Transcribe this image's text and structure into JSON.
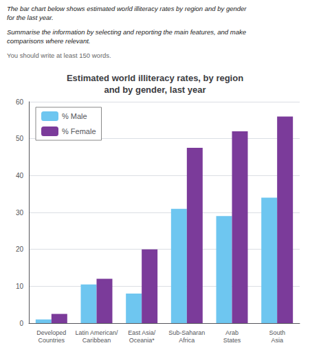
{
  "chart_data": {
    "type": "bar",
    "title": "Estimated world illiteracy rates, by region\nand by gender, last year",
    "annotations": [
      "The bar chart below shows estimated world illiteracy rates by region and by gender\nfor the last year.",
      "Summarise the information by selecting and reporting the main features, and make\ncomparisons where relevant.",
      "You should write at least 150 words."
    ],
    "categories": [
      "Developed\nCountries",
      "Latin American/\nCaribbean",
      "East Asia/\nOceania*",
      "Sub-Saharan\nAfrica",
      "Arab\nStates",
      "South\nAsia"
    ],
    "series": [
      {
        "name": "% Male",
        "color": "#6EC6F0",
        "values": [
          1,
          10.5,
          8,
          31,
          29,
          34
        ]
      },
      {
        "name": "% Female",
        "color": "#7B3B9A",
        "values": [
          2.5,
          12,
          20,
          47.5,
          52,
          56
        ]
      }
    ],
    "ylim": [
      0,
      60
    ],
    "yticks": [
      0,
      10,
      20,
      30,
      40,
      50,
      60
    ],
    "grid": true,
    "legend": "upper left"
  }
}
